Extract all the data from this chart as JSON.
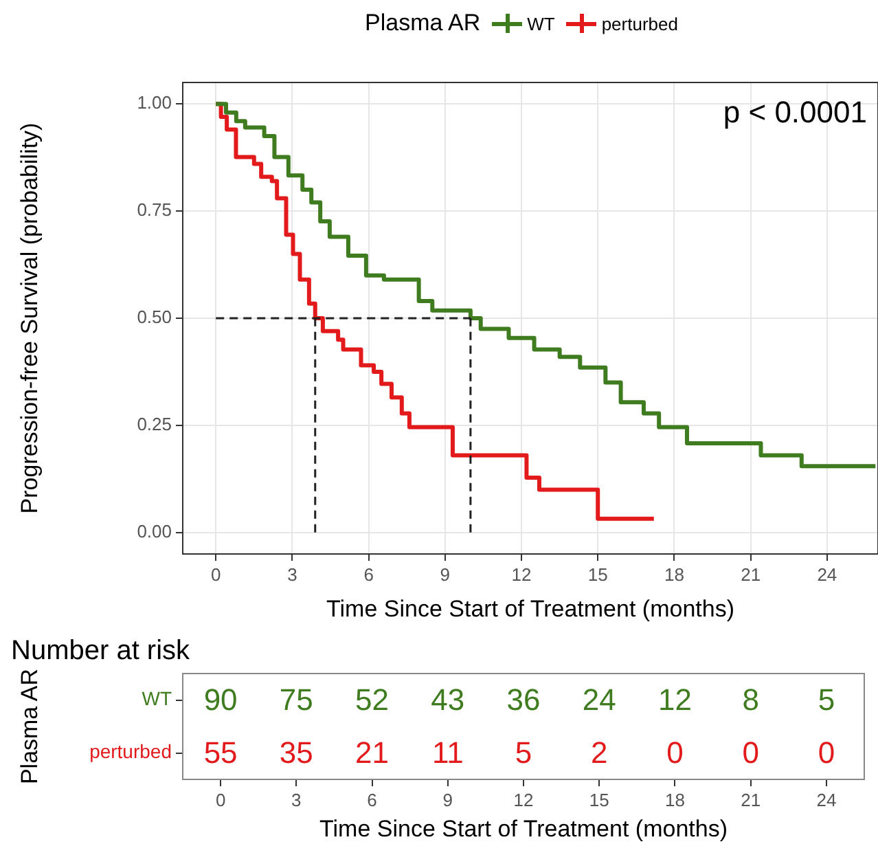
{
  "chart_data": [
    {
      "type": "step",
      "legend_title": "Plasma AR",
      "legend": "top",
      "xlabel": "Time Since Start of Treatment (months)",
      "ylabel": "Progression-free Survival (probability)",
      "annotations": [
        "p < 0.0001"
      ],
      "xlim": [
        -1.3,
        26
      ],
      "xticks": [
        0,
        3,
        6,
        9,
        12,
        15,
        18,
        21,
        24
      ],
      "ylim": [
        -0.05,
        1.05
      ],
      "yticks": [
        {
          "value": 0,
          "label": "0.00"
        },
        {
          "value": 0.25,
          "label": "0.25"
        },
        {
          "value": 0.5,
          "label": "0.50"
        },
        {
          "value": 0.75,
          "label": "0.75"
        },
        {
          "value": 1,
          "label": "1.00"
        }
      ],
      "grid": true,
      "ref_lines": [
        {
          "axis": "y",
          "value": 0.5,
          "line_style": "dashed"
        },
        {
          "axis": "x",
          "value": 3.9,
          "line_style": "dashed"
        },
        {
          "axis": "x",
          "value": 10,
          "line_style": "dashed"
        }
      ],
      "series": [
        {
          "name": "WT",
          "color": "#3f7b1f",
          "x": [
            0,
            0.4,
            0.8,
            1.15,
            1.9,
            2.3,
            2.85,
            3.4,
            3.75,
            4.1,
            4.47,
            5.2,
            5.9,
            6.6,
            7.97,
            8.5,
            10,
            10.4,
            11.5,
            12.5,
            13.5,
            14.3,
            15.3,
            15.9,
            16.8,
            17.4,
            18.5,
            21.4,
            23,
            25.9
          ],
          "values": [
            1,
            0.98,
            0.96,
            0.945,
            0.925,
            0.876,
            0.833,
            0.8,
            0.77,
            0.726,
            0.69,
            0.646,
            0.6,
            0.59,
            0.54,
            0.518,
            0.5,
            0.475,
            0.454,
            0.427,
            0.41,
            0.385,
            0.35,
            0.304,
            0.278,
            0.246,
            0.208,
            0.18,
            0.155,
            0.155
          ]
        },
        {
          "name": "perturbed",
          "color": "#e31a1c",
          "x": [
            0,
            0.2,
            0.43,
            0.79,
            1.5,
            1.78,
            2.2,
            2.4,
            2.76,
            3.03,
            3.3,
            3.66,
            3.9,
            4.2,
            4.8,
            5,
            5.7,
            6.2,
            6.5,
            6.9,
            7.3,
            7.6,
            9.3,
            12.2,
            12.7,
            15,
            17.2
          ],
          "values": [
            1,
            0.97,
            0.94,
            0.876,
            0.86,
            0.83,
            0.82,
            0.78,
            0.695,
            0.65,
            0.59,
            0.534,
            0.5,
            0.47,
            0.45,
            0.427,
            0.39,
            0.375,
            0.347,
            0.315,
            0.278,
            0.246,
            0.18,
            0.128,
            0.1,
            0.032,
            0.032
          ]
        }
      ]
    },
    {
      "type": "heatmap",
      "title": "Number at risk",
      "xlabel": "Time Since Start of Treatment (months)",
      "ylabel": "Plasma AR",
      "categories": [
        "0",
        "3",
        "6",
        "9",
        "12",
        "15",
        "18",
        "21",
        "24"
      ],
      "y_categories": [
        "WT",
        "perturbed"
      ],
      "colors": [
        "#3f7b1f",
        "#e31a1c"
      ],
      "data_labels": true,
      "cells": [
        [
          90,
          75,
          52,
          43,
          36,
          24,
          12,
          8,
          5
        ],
        [
          55,
          35,
          21,
          11,
          5,
          2,
          0,
          0,
          0
        ]
      ]
    }
  ]
}
